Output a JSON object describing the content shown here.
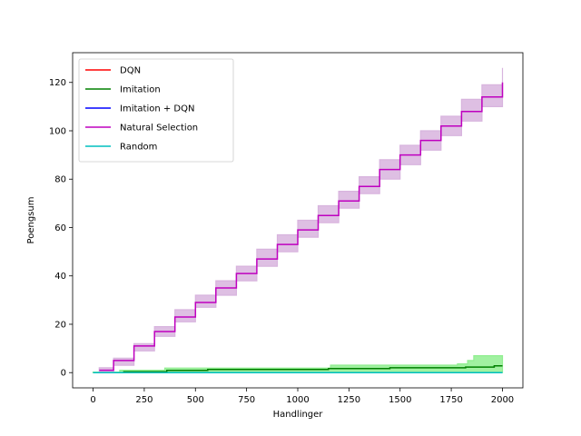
{
  "chart_data": {
    "type": "line",
    "title": "",
    "xlabel": "Handlinger",
    "ylabel": "Poengsum",
    "xlim": [
      -100,
      2100
    ],
    "ylim": [
      -6.3,
      132.3
    ],
    "xticks": [
      0,
      250,
      500,
      750,
      1000,
      1250,
      1500,
      1750,
      2000
    ],
    "yticks": [
      0,
      20,
      40,
      60,
      80,
      100,
      120
    ],
    "grid": false,
    "legend_position": "upper left",
    "series": [
      {
        "name": "DQN",
        "color": "#ff0000",
        "style": "step",
        "x": [
          0,
          2000
        ],
        "y": [
          0,
          0
        ]
      },
      {
        "name": "Imitation",
        "color": "#008000",
        "style": "step",
        "x": [
          0,
          150,
          360,
          560,
          1150,
          1450,
          1820,
          1960,
          2000
        ],
        "y": [
          0,
          0.4,
          0.9,
          1.3,
          1.7,
          2.0,
          2.3,
          2.8,
          2.8
        ],
        "band": {
          "color": "#90ee90",
          "x": [
            0,
            130,
            350,
            1160,
            1780,
            1830,
            1860,
            2000
          ],
          "upper": [
            0.2,
            1.0,
            1.9,
            3.1,
            3.6,
            5.0,
            7.0,
            7.0
          ],
          "lower": [
            0,
            0,
            0,
            0,
            0,
            0,
            0,
            0
          ]
        }
      },
      {
        "name": "Imitation + DQN",
        "color": "#0000ff",
        "style": "step",
        "x": [
          0,
          2000
        ],
        "y": [
          0,
          0
        ]
      },
      {
        "name": "Natural Selection",
        "color": "#bf00bf",
        "style": "step",
        "x": [
          30,
          100,
          200,
          300,
          400,
          500,
          600,
          700,
          800,
          900,
          1000,
          1100,
          1200,
          1300,
          1400,
          1500,
          1600,
          1700,
          1800,
          1900,
          2000
        ],
        "y": [
          1,
          5,
          11,
          17,
          23,
          29,
          35,
          41,
          47,
          53,
          59,
          65,
          71,
          77,
          84,
          90,
          96,
          102,
          108,
          114,
          120
        ],
        "band": {
          "color": "#d8b4de",
          "x": [
            30,
            100,
            200,
            300,
            400,
            500,
            600,
            700,
            800,
            900,
            1000,
            1100,
            1200,
            1300,
            1400,
            1500,
            1600,
            1700,
            1800,
            1900,
            2000
          ],
          "upper": [
            2,
            6,
            12,
            19,
            26,
            32,
            38,
            44,
            51,
            57,
            63,
            69,
            75,
            81,
            88,
            94,
            100,
            106,
            113,
            119,
            126
          ],
          "lower": [
            0,
            3,
            9,
            15,
            21,
            27,
            32,
            38,
            44,
            50,
            56,
            62,
            68,
            74,
            80,
            86,
            92,
            98,
            104,
            110,
            116
          ]
        }
      },
      {
        "name": "Random",
        "color": "#00bfbf",
        "style": "step",
        "x": [
          0,
          2000
        ],
        "y": [
          0,
          0
        ]
      }
    ]
  }
}
